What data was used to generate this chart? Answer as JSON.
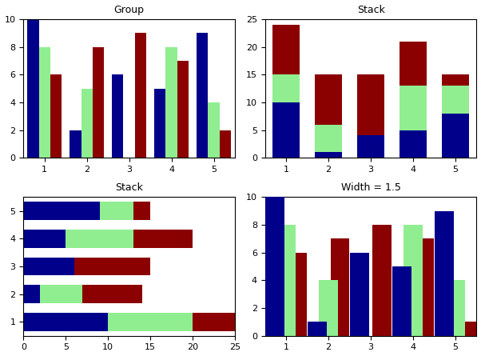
{
  "group_data": {
    "title": "Group",
    "blue": [
      10,
      2,
      6,
      5,
      9
    ],
    "green": [
      8,
      5,
      0,
      8,
      4
    ],
    "red": [
      6,
      8,
      9,
      7,
      2
    ],
    "xlim": [
      0.5,
      5.5
    ],
    "ylim": [
      0,
      10
    ],
    "xticks": [
      1,
      2,
      3,
      4,
      5
    ],
    "yticks": [
      0,
      2,
      4,
      6,
      8,
      10
    ]
  },
  "vstack_data": {
    "title": "Stack",
    "blue": [
      10,
      1,
      4,
      5,
      8
    ],
    "green": [
      5,
      5,
      0,
      8,
      5
    ],
    "red": [
      9,
      9,
      11,
      8,
      2
    ],
    "xlim": [
      0.5,
      5.5
    ],
    "ylim": [
      0,
      25
    ],
    "xticks": [
      1,
      2,
      3,
      4,
      5
    ],
    "yticks": [
      0,
      5,
      10,
      15,
      20,
      25
    ]
  },
  "hstack_data": {
    "title": "Stack",
    "blue": [
      10,
      2,
      6,
      5,
      9
    ],
    "green": [
      10,
      5,
      0,
      8,
      4
    ],
    "red": [
      5,
      7,
      9,
      7,
      2
    ],
    "ylim": [
      0.5,
      5.5
    ],
    "xlim": [
      0,
      25
    ],
    "yticks": [
      1,
      2,
      3,
      4,
      5
    ],
    "xticks": [
      0,
      5,
      10,
      15,
      20,
      25
    ]
  },
  "width_data": {
    "title": "Width = 1.5",
    "blue": [
      10,
      1,
      6,
      5,
      9
    ],
    "green": [
      8,
      4,
      0,
      8,
      4
    ],
    "red": [
      6,
      7,
      8,
      7,
      1
    ],
    "xlim": [
      0.5,
      5.5
    ],
    "ylim": [
      0,
      10
    ],
    "xticks": [
      1,
      2,
      3,
      4,
      5
    ],
    "yticks": [
      0,
      2,
      4,
      6,
      8,
      10
    ]
  },
  "colors": {
    "blue": "#00008B",
    "green": "#90EE90",
    "red": "#8B0000"
  },
  "bg_color": "#f0f0f0"
}
